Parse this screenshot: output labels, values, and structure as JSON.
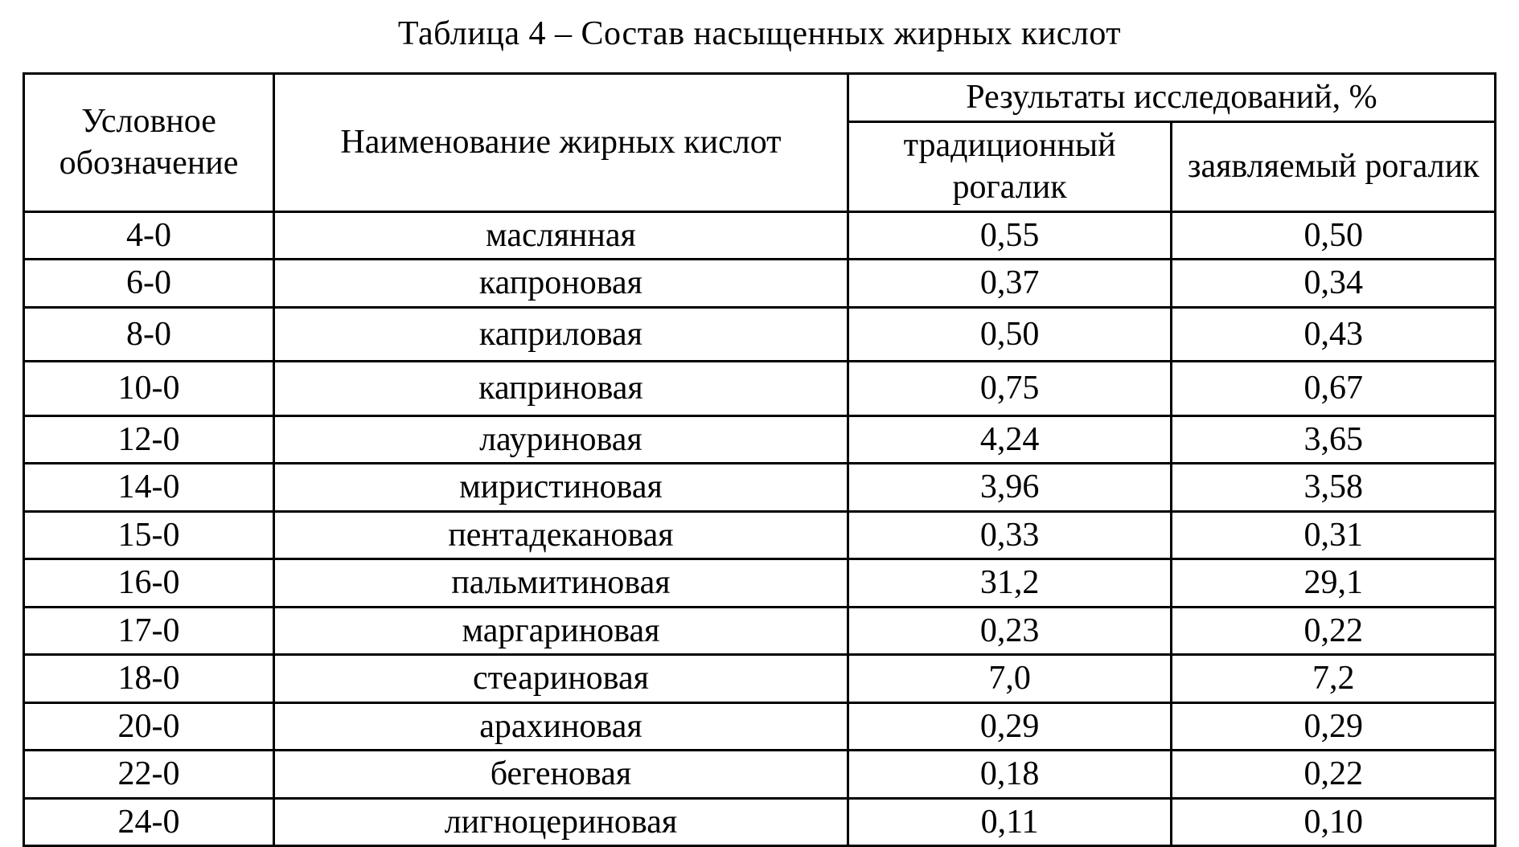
{
  "table": {
    "type": "table",
    "title": "Таблица 4 – Состав насыщенных жирных кислот",
    "border_color": "#000000",
    "background_color": "#ffffff",
    "text_color": "#000000",
    "font_family": "Times New Roman",
    "title_fontsize": 42,
    "cell_fontsize": 42,
    "border_width": 3,
    "column_widths_pct": [
      17,
      39,
      22,
      22
    ],
    "header": {
      "col1": "Условное обозначение",
      "col2": "Наименование жирных кислот",
      "results_group": "Результаты исследований, %",
      "col3": "традиционный рогалик",
      "col4": "заявляемый рогалик"
    },
    "rows": [
      {
        "code": "4-0",
        "name": "маслянная",
        "trad": "0,55",
        "decl": "0,50",
        "tall": false
      },
      {
        "code": "6-0",
        "name": "капроновая",
        "trad": "0,37",
        "decl": "0,34",
        "tall": false
      },
      {
        "code": "8-0",
        "name": "каприловая",
        "trad": "0,50",
        "decl": "0,43",
        "tall": true
      },
      {
        "code": "10-0",
        "name": "каприновая",
        "trad": "0,75",
        "decl": "0,67",
        "tall": true
      },
      {
        "code": "12-0",
        "name": "лауриновая",
        "trad": "4,24",
        "decl": "3,65",
        "tall": false
      },
      {
        "code": "14-0",
        "name": "миристиновая",
        "trad": "3,96",
        "decl": "3,58",
        "tall": false
      },
      {
        "code": "15-0",
        "name": "пентадекановая",
        "trad": "0,33",
        "decl": "0,31",
        "tall": false
      },
      {
        "code": "16-0",
        "name": "пальмитиновая",
        "trad": "31,2",
        "decl": "29,1",
        "tall": false
      },
      {
        "code": "17-0",
        "name": "маргариновая",
        "trad": "0,23",
        "decl": "0,22",
        "tall": false
      },
      {
        "code": "18-0",
        "name": "стеариновая",
        "trad": "7,0",
        "decl": "7,2",
        "tall": false
      },
      {
        "code": "20-0",
        "name": "арахиновая",
        "trad": "0,29",
        "decl": "0,29",
        "tall": false
      },
      {
        "code": "22-0",
        "name": "бегеновая",
        "trad": "0,18",
        "decl": "0,22",
        "tall": false
      },
      {
        "code": "24-0",
        "name": "лигноцериновая",
        "trad": "0,11",
        "decl": "0,10",
        "tall": false
      }
    ]
  }
}
